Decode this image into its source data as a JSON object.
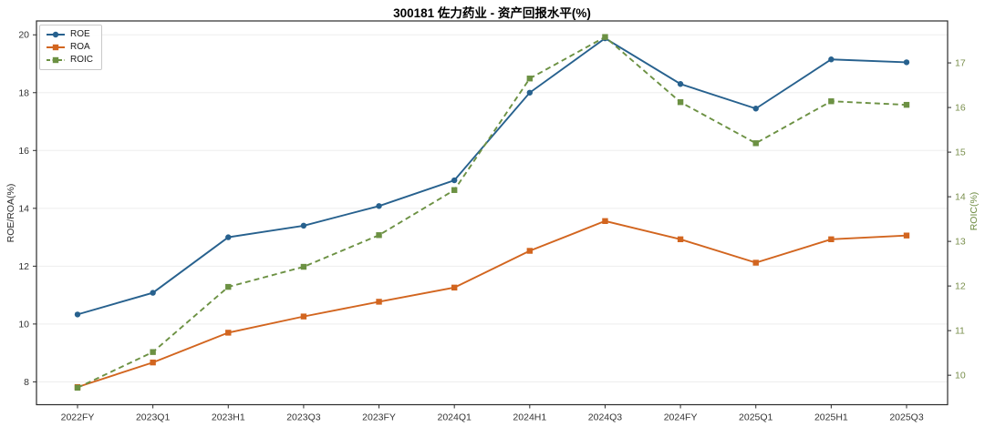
{
  "chart_data": {
    "type": "line",
    "title": "300181 佐力药业 - 资产回报水平(%)",
    "xlabel": "",
    "ylabel_left": "ROE/ROA(%)",
    "ylabel_right": "ROIC(%)",
    "categories": [
      "2022FY",
      "2023Q1",
      "2023H1",
      "2023Q3",
      "2023FY",
      "2024Q1",
      "2024H1",
      "2024Q3",
      "2024FY",
      "2025Q1",
      "2025H1",
      "2025Q3"
    ],
    "series": [
      {
        "name": "ROE",
        "axis": "left",
        "color": "#27618e",
        "marker": "circle",
        "dash": "solid",
        "values": [
          10.33,
          11.08,
          13.0,
          13.4,
          14.08,
          14.97,
          18.0,
          19.88,
          18.3,
          17.45,
          19.15,
          19.05
        ]
      },
      {
        "name": "ROA",
        "axis": "left",
        "color": "#d2651f",
        "marker": "square",
        "dash": "solid",
        "values": [
          7.82,
          8.67,
          9.7,
          10.26,
          10.77,
          11.26,
          12.53,
          13.56,
          12.93,
          12.12,
          12.93,
          13.06
        ]
      },
      {
        "name": "ROIC",
        "axis": "right",
        "color": "#6c9143",
        "marker": "square",
        "dash": "dashed",
        "values": [
          9.72,
          10.52,
          11.98,
          12.43,
          13.14,
          14.15,
          16.65,
          17.58,
          16.12,
          15.2,
          16.14,
          16.06
        ]
      }
    ],
    "yticks_left": [
      8,
      10,
      12,
      14,
      16,
      18,
      20
    ],
    "yticks_right": [
      10,
      11,
      12,
      13,
      14,
      15,
      16,
      17
    ],
    "ylim_left": [
      7.21,
      20.48
    ],
    "ylim_right": [
      9.34,
      17.94
    ],
    "grid": true,
    "legend_position": "top-left",
    "colors": {
      "axis_frame": "#2b2b2b",
      "grid": "#ededed",
      "tick_label_left": "#333333",
      "tick_label_bottom": "#333333",
      "tick_label_right": "#7a8f4d",
      "background": "#ffffff"
    }
  }
}
